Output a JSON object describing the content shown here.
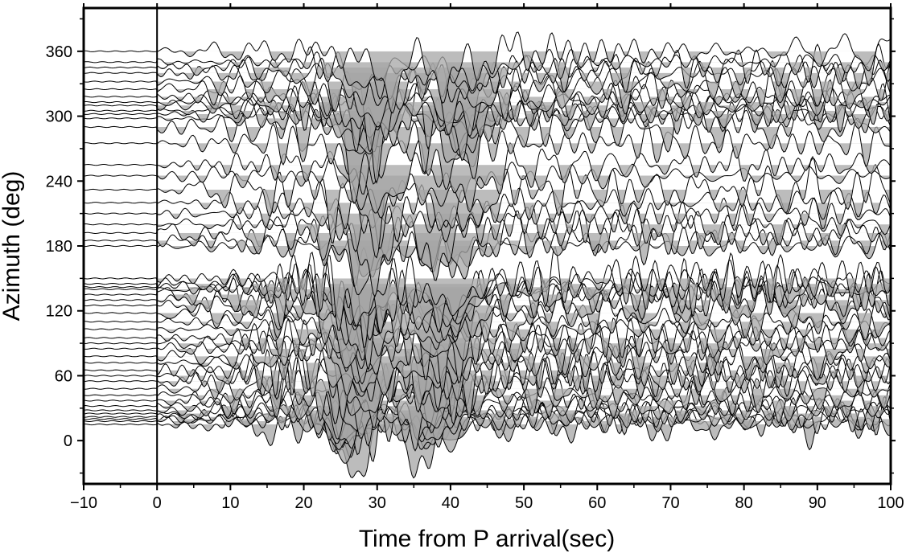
{
  "chart_data": {
    "type": "line",
    "title": "",
    "xlabel": "Time from P arrival(sec)",
    "ylabel": "Azimuth (deg)",
    "xlim": [
      -10,
      100
    ],
    "ylim": [
      -40,
      400
    ],
    "xticks": [
      -10,
      0,
      10,
      20,
      30,
      40,
      50,
      60,
      70,
      80,
      90,
      100
    ],
    "xtick_labels": [
      "−10",
      "0",
      "10",
      "20",
      "30",
      "40",
      "50",
      "60",
      "70",
      "80",
      "90",
      "100"
    ],
    "yticks": [
      0,
      60,
      120,
      180,
      240,
      300,
      360
    ],
    "ytick_labels": [
      "0",
      "60",
      "120",
      "180",
      "240",
      "300",
      "360"
    ],
    "reference_line_x": 0,
    "grid": false,
    "style": {
      "trace_color": "#000000",
      "fill_color": "#a6a6a6",
      "dark_fill_color": "#4d4d4d",
      "fill": "negative half of each trace below its baseline"
    },
    "trace_baseline_azimuths": [
      15,
      18,
      20,
      22,
      25,
      28,
      32,
      37,
      42,
      48,
      55,
      60,
      65,
      72,
      78,
      85,
      90,
      95,
      103,
      110,
      118,
      125,
      130,
      135,
      140,
      142,
      145,
      150,
      180,
      185,
      192,
      200,
      210,
      220,
      232,
      245,
      255,
      275,
      290,
      298,
      302,
      305,
      310,
      313,
      318,
      325,
      332,
      340,
      345,
      350,
      360
    ]
  }
}
